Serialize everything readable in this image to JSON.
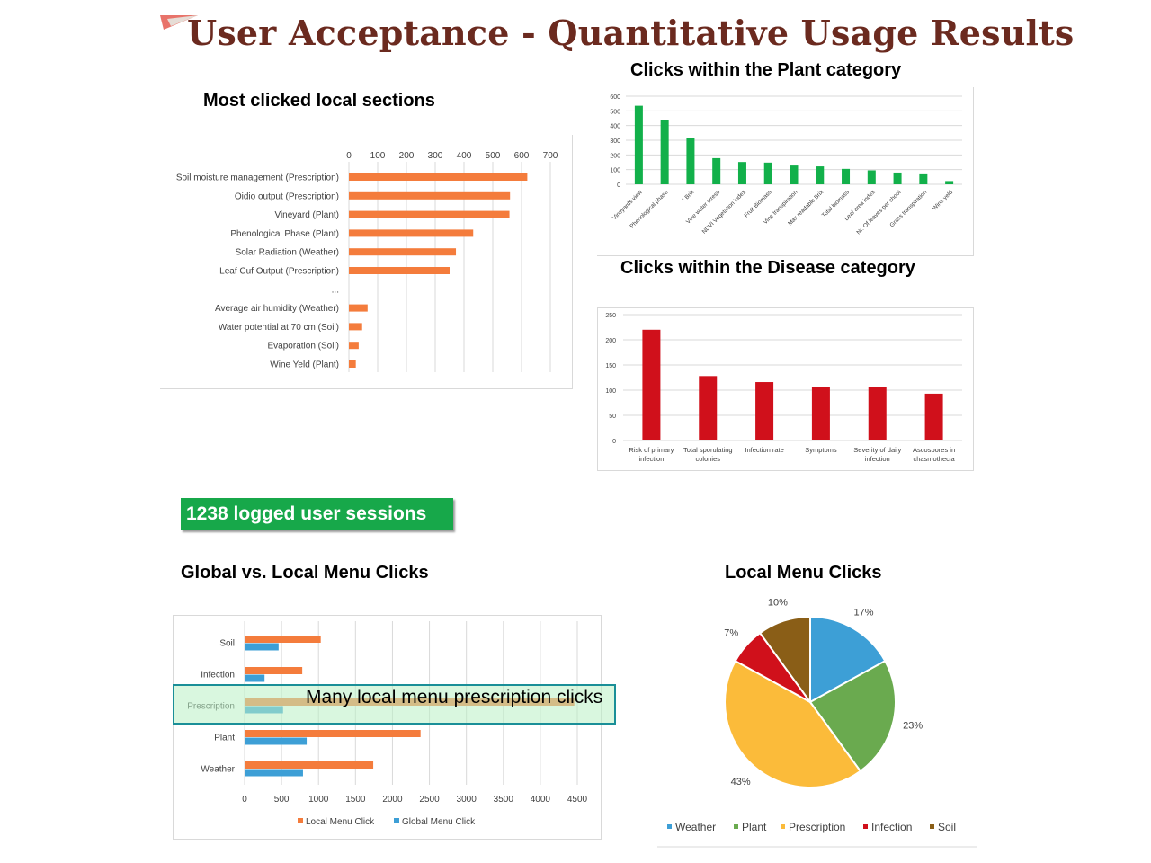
{
  "page": {
    "title": "User Acceptance - Quantitative Usage Results",
    "sessions_badge": "1238 logged user sessions",
    "callout": "Many local menu prescription clicks",
    "colors": {
      "title": "#6b2a1f",
      "badge": "#17a84a",
      "local": "#f47c3c",
      "global": "#3d9fd6",
      "plant": "#12b04a",
      "disease": "#d0101b"
    }
  },
  "chart_data": [
    {
      "id": "local_sections",
      "type": "bar",
      "orientation": "horizontal",
      "title": "Most clicked local sections",
      "categories": [
        "Soil moisture management (Prescription)",
        "Oidio output (Prescription)",
        "Vineyard (Plant)",
        "Phenological Phase (Plant)",
        "Solar Radiation (Weather)",
        "Leaf Cuf Output (Prescription)",
        "...",
        "Average air humidity (Weather)",
        "Water potential at 70 cm (Soil)",
        "Evaporation (Soil)",
        "Wine Yeld (Plant)"
      ],
      "values": [
        620,
        560,
        558,
        432,
        372,
        350,
        null,
        65,
        46,
        34,
        24
      ],
      "xlim": [
        0,
        700
      ],
      "xticks": [
        0,
        100,
        200,
        300,
        400,
        500,
        600,
        700
      ],
      "color": "#f47c3c",
      "grid": true
    },
    {
      "id": "plant_category",
      "type": "bar",
      "title": "Clicks within the Plant category",
      "categories": [
        "Vineyards view",
        "Phenological phase",
        "° Brix",
        "Vine water stress",
        "NDVI Vegetation index",
        "Fruit Biomass",
        "Vine transpiration",
        "Max readable Brix",
        "Total biomass",
        "Leaf area index",
        "Nr. Of leaves per shoot",
        "Grass transpiration",
        "Wine yeld"
      ],
      "values": [
        535,
        435,
        318,
        178,
        152,
        148,
        128,
        122,
        105,
        95,
        80,
        68,
        22
      ],
      "ylim": [
        0,
        600
      ],
      "yticks": [
        0,
        100,
        200,
        300,
        400,
        500,
        600
      ],
      "color": "#12b04a",
      "grid": true
    },
    {
      "id": "disease_category",
      "type": "bar",
      "title": "Clicks within the Disease category",
      "categories": [
        [
          "Risk of primary",
          "infection"
        ],
        [
          "Total sporulating",
          "colonies"
        ],
        [
          "Infection rate"
        ],
        [
          "Symptoms"
        ],
        [
          "Severity of daily",
          "infection"
        ],
        [
          "Ascospores in",
          "chasmothecia"
        ]
      ],
      "values": [
        220,
        128,
        116,
        106,
        106,
        93
      ],
      "ylim": [
        0,
        250
      ],
      "yticks": [
        0,
        50,
        100,
        150,
        200,
        250
      ],
      "color": "#d0101b",
      "grid": true
    },
    {
      "id": "global_vs_local",
      "type": "bar",
      "orientation": "horizontal",
      "title": "Global vs. Local Menu Clicks",
      "categories": [
        "Soil",
        "Infection",
        "Prescription",
        "Plant",
        "Weather"
      ],
      "series": [
        {
          "name": "Local Menu Click",
          "values": [
            1030,
            780,
            4460,
            2380,
            1740
          ],
          "color": "#f47c3c"
        },
        {
          "name": "Global Menu Click",
          "values": [
            460,
            270,
            520,
            840,
            790
          ],
          "color": "#3d9fd6"
        }
      ],
      "xlim": [
        0,
        4500
      ],
      "xticks": [
        0,
        500,
        1000,
        1500,
        2000,
        2500,
        3000,
        3500,
        4000,
        4500
      ],
      "legend": "bottom",
      "grid": true
    },
    {
      "id": "local_menu_pie",
      "type": "pie",
      "title": "Local Menu Clicks",
      "labels": [
        "Weather",
        "Plant",
        "Prescription",
        "Infection",
        "Soil"
      ],
      "values": [
        17,
        23,
        43,
        7,
        10
      ],
      "display": [
        "17%",
        "23%",
        "43%",
        "7%",
        "10%"
      ],
      "colors": [
        "#3d9fd6",
        "#6aaa4f",
        "#fbbb3a",
        "#d0101b",
        "#8a5e17"
      ],
      "legend": "bottom"
    }
  ]
}
